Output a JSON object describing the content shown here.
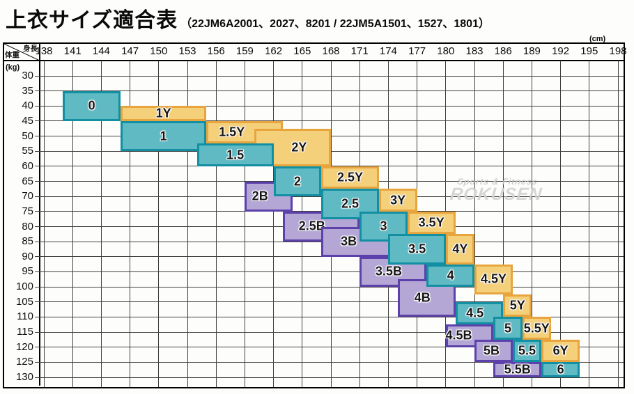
{
  "title": {
    "main": "上衣サイズ適合表",
    "codes": "（22JM6A2001、2027、8201 / 22JM5A1501、1527、1801）"
  },
  "axes": {
    "x_label": "身長",
    "x_unit": "(cm)",
    "y_label": "体重",
    "y_unit": "(kg)"
  },
  "watermark": {
    "line1": "Sports & Fitness",
    "line2": "ROKUSEN"
  },
  "colors": {
    "N": {
      "fill": "#5fbac4",
      "border": "#128fa2"
    },
    "Y": {
      "fill": "#f4d07b",
      "border": "#e8a53e"
    },
    "B": {
      "fill": "#b4a7d6",
      "border": "#5c41ab"
    },
    "grid": "#3f3f3f",
    "frame": "#000000"
  },
  "chart_data": {
    "type": "heatmap",
    "title": "上衣サイズ適合表",
    "x_axis": {
      "label": "身長",
      "unit": "cm",
      "range": [
        138,
        198
      ],
      "ticks": [
        138,
        141,
        144,
        147,
        150,
        153,
        156,
        159,
        162,
        165,
        168,
        171,
        174,
        177,
        180,
        183,
        186,
        189,
        192,
        195,
        198
      ]
    },
    "y_axis": {
      "label": "体重",
      "unit": "kg",
      "range": [
        30,
        130
      ],
      "ticks": [
        30,
        35,
        40,
        45,
        50,
        55,
        60,
        65,
        70,
        75,
        80,
        85,
        90,
        95,
        100,
        105,
        110,
        115,
        120,
        125,
        130
      ]
    },
    "grid": true,
    "legend": "none",
    "sizes": [
      {
        "id": "1Y",
        "fit": "Y",
        "height_cm": [
          146,
          155
        ],
        "weight_kg": [
          40,
          45
        ]
      },
      {
        "id": "1.5Y",
        "fit": "Y",
        "height_cm": [
          155,
          163
        ],
        "weight_kg": [
          45,
          52.5
        ],
        "dx": -0.18
      },
      {
        "id": "2Y",
        "fit": "Y",
        "height_cm": [
          160,
          168
        ],
        "weight_kg": [
          47.5,
          60
        ],
        "dx": 0.09
      },
      {
        "id": "2.5Y",
        "fit": "Y",
        "height_cm": [
          167,
          173
        ],
        "weight_kg": [
          60,
          67.5
        ]
      },
      {
        "id": "3Y",
        "fit": "Y",
        "height_cm": [
          173,
          177
        ],
        "weight_kg": [
          67.5,
          75
        ]
      },
      {
        "id": "3.5Y",
        "fit": "Y",
        "height_cm": [
          176,
          181
        ],
        "weight_kg": [
          75,
          82.5
        ]
      },
      {
        "id": "4Y",
        "fit": "Y",
        "height_cm": [
          180,
          183
        ],
        "weight_kg": [
          82.5,
          92.5
        ]
      },
      {
        "id": "4.5Y",
        "fit": "Y",
        "height_cm": [
          183,
          187
        ],
        "weight_kg": [
          92.5,
          102.5
        ]
      },
      {
        "id": "5Y",
        "fit": "Y",
        "height_cm": [
          186,
          189
        ],
        "weight_kg": [
          102.5,
          110
        ]
      },
      {
        "id": "5.5Y",
        "fit": "Y",
        "height_cm": [
          188,
          191
        ],
        "weight_kg": [
          110,
          117.5
        ]
      },
      {
        "id": "6Y",
        "fit": "Y",
        "height_cm": [
          190,
          194
        ],
        "weight_kg": [
          117.5,
          125
        ]
      },
      {
        "id": "2B",
        "fit": "B",
        "height_cm": [
          159,
          164
        ],
        "weight_kg": [
          65,
          75
        ],
        "dx": -0.2
      },
      {
        "id": "2.5B",
        "fit": "B",
        "height_cm": [
          163,
          171
        ],
        "weight_kg": [
          75,
          85
        ],
        "dx": -0.13
      },
      {
        "id": "3B",
        "fit": "B",
        "height_cm": [
          167,
          175
        ],
        "weight_kg": [
          80,
          90
        ],
        "dx": -0.15
      },
      {
        "id": "3.5B",
        "fit": "B",
        "height_cm": [
          171,
          178
        ],
        "weight_kg": [
          90,
          100
        ],
        "dx": -0.07
      },
      {
        "id": "4B",
        "fit": "B",
        "height_cm": [
          175,
          181
        ],
        "weight_kg": [
          97.5,
          110
        ],
        "dx": -0.08
      },
      {
        "id": "4.5B",
        "fit": "B",
        "height_cm": [
          180,
          185
        ],
        "weight_kg": [
          112.5,
          120
        ],
        "dx": -0.25
      },
      {
        "id": "5B",
        "fit": "B",
        "height_cm": [
          183,
          187
        ],
        "weight_kg": [
          117.5,
          125
        ],
        "dx": -0.06
      },
      {
        "id": "5.5B",
        "fit": "B",
        "height_cm": [
          185,
          190
        ],
        "weight_kg": [
          125,
          130
        ]
      },
      {
        "id": "0",
        "fit": "N",
        "height_cm": [
          140,
          146
        ],
        "weight_kg": [
          35,
          45
        ]
      },
      {
        "id": "1",
        "fit": "N",
        "height_cm": [
          146,
          155
        ],
        "weight_kg": [
          45,
          55
        ]
      },
      {
        "id": "1.5",
        "fit": "N",
        "height_cm": [
          154,
          162
        ],
        "weight_kg": [
          52.5,
          60
        ]
      },
      {
        "id": "2",
        "fit": "N",
        "height_cm": [
          162,
          167
        ],
        "weight_kg": [
          60,
          70
        ]
      },
      {
        "id": "2.5",
        "fit": "N",
        "height_cm": [
          167,
          173
        ],
        "weight_kg": [
          67.5,
          77.5
        ]
      },
      {
        "id": "3",
        "fit": "N",
        "height_cm": [
          171,
          176
        ],
        "weight_kg": [
          75,
          85
        ]
      },
      {
        "id": "3.5",
        "fit": "N",
        "height_cm": [
          174,
          180
        ],
        "weight_kg": [
          82.5,
          92.5
        ]
      },
      {
        "id": "4",
        "fit": "N",
        "height_cm": [
          178,
          183
        ],
        "weight_kg": [
          92.5,
          100
        ]
      },
      {
        "id": "4.5",
        "fit": "N",
        "height_cm": [
          181,
          186
        ],
        "weight_kg": [
          105,
          112.5
        ],
        "dx": -0.1
      },
      {
        "id": "5",
        "fit": "N",
        "height_cm": [
          185,
          188
        ],
        "weight_kg": [
          110,
          117.5
        ]
      },
      {
        "id": "5.5",
        "fit": "N",
        "height_cm": [
          187,
          190
        ],
        "weight_kg": [
          117.5,
          125
        ]
      },
      {
        "id": "6",
        "fit": "N",
        "height_cm": [
          190,
          194
        ],
        "weight_kg": [
          125,
          130
        ]
      }
    ]
  }
}
